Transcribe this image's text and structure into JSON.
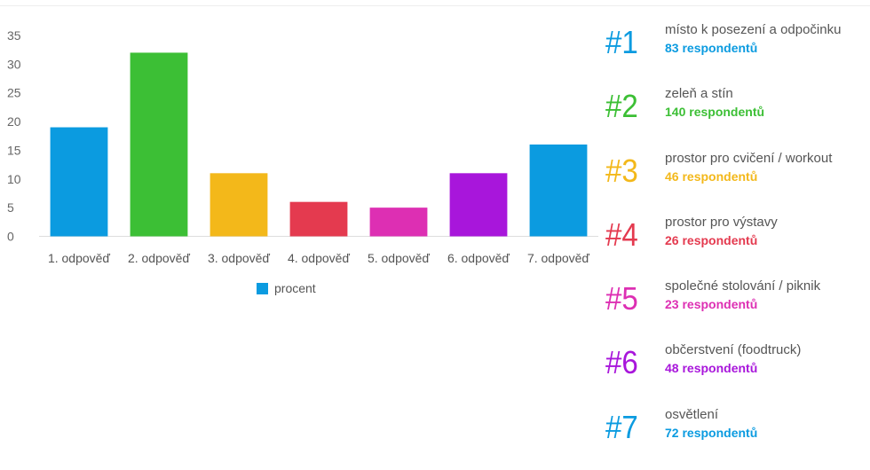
{
  "chart_data": {
    "type": "bar",
    "categories": [
      "1. odpověď",
      "2. odpověď",
      "3. odpověď",
      "4. odpověď",
      "5. odpověď",
      "6. odpověď",
      "7. odpověď"
    ],
    "series": [
      {
        "name": "procent",
        "values": [
          19,
          32,
          11,
          6,
          5,
          11,
          16
        ]
      }
    ],
    "bar_colors": [
      "#0b9be0",
      "#3cbf35",
      "#f3b81a",
      "#e43a4f",
      "#dd2fb3",
      "#a816db",
      "#0b9be0"
    ],
    "legend_color": "#0b9be0",
    "yticks": [
      "0",
      "5",
      "10",
      "15",
      "20",
      "25",
      "30",
      "35"
    ],
    "ylim": [
      0,
      35
    ],
    "grid": false,
    "legend_position": "bottom",
    "title": "",
    "xlabel": "",
    "ylabel": ""
  },
  "ranking": [
    {
      "rank": "#1",
      "label": "místo k posezení a odpočinku",
      "count": "83 respondentů",
      "color": "#0b9be0"
    },
    {
      "rank": "#2",
      "label": "zeleň a stín",
      "count": "140 respondentů",
      "color": "#3cbf35"
    },
    {
      "rank": "#3",
      "label": "prostor pro cvičení / workout",
      "count": "46 respondentů",
      "color": "#f3b81a"
    },
    {
      "rank": "#4",
      "label": "prostor pro výstavy",
      "count": "26 respondentů",
      "color": "#e43a4f"
    },
    {
      "rank": "#5",
      "label": "společné stolování / piknik",
      "count": "23 respondentů",
      "color": "#dd2fb3"
    },
    {
      "rank": "#6",
      "label": "občerstvení (foodtruck)",
      "count": "48 respondentů",
      "color": "#a816db"
    },
    {
      "rank": "#7",
      "label": "osvětlení",
      "count": "72 respondentů",
      "color": "#0b9be0"
    }
  ]
}
